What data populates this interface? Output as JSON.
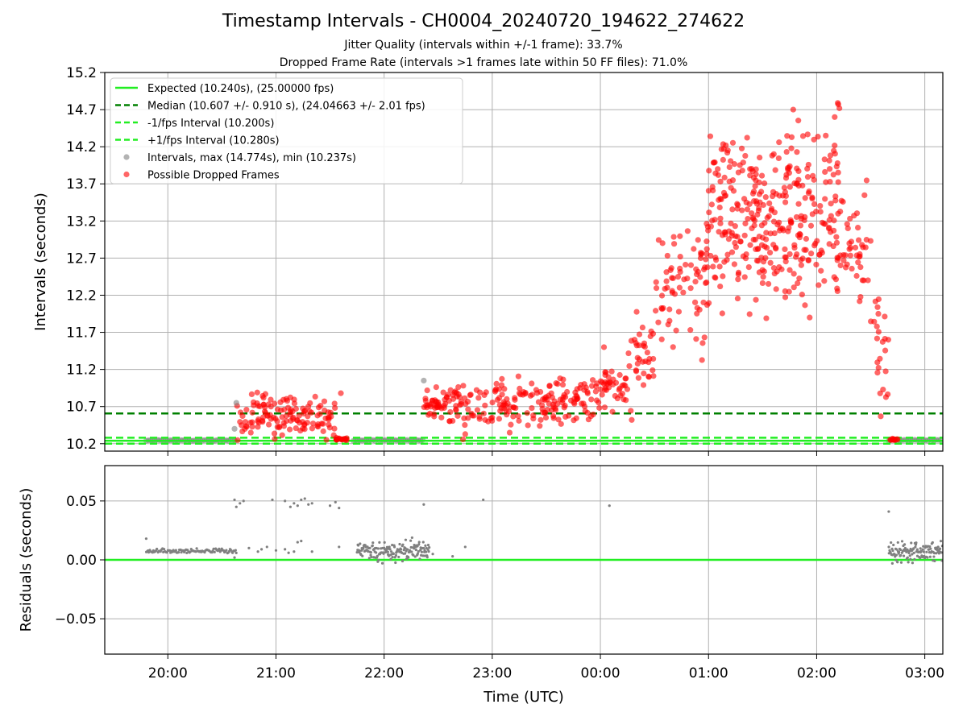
{
  "figure": {
    "title": "Timestamp Intervals - CH0004_20240720_194622_274622",
    "subtitle_1": "Jitter Quality (intervals within +/-1 frame): 33.7%",
    "subtitle_2": "Dropped Frame Rate (intervals >1 frames late within 50 FF files): 71.0%"
  },
  "chart_data": [
    {
      "type": "scatter",
      "panel": "intervals",
      "ylabel": "Intervals (seconds)",
      "ylim": [
        10.1,
        15.2
      ],
      "yticks": [
        "10.2",
        "10.7",
        "11.2",
        "11.7",
        "12.2",
        "12.7",
        "13.2",
        "13.7",
        "14.2",
        "14.7",
        "15.2"
      ],
      "xlim": [
        "19:25",
        "03:10"
      ],
      "grid": true,
      "legend_position": "top-left",
      "colors": {
        "expected": "#22ee22",
        "median": "#008000",
        "normal": "#808080",
        "dropped": "#ff0000"
      },
      "lines": [
        {
          "key": "expected",
          "label": "Expected (10.240s), (25.00000 fps)",
          "y": 10.24,
          "style": "solid",
          "color": "#22ee22"
        },
        {
          "key": "median",
          "label": "Median (10.607 +/- 0.910 s), (24.04663 +/- 2.01 fps)",
          "y": 10.607,
          "style": "dashed",
          "color": "#008000"
        },
        {
          "key": "minus_fps",
          "label": "-1/fps Interval (10.200s)",
          "y": 10.2,
          "style": "dashed",
          "color": "#22ee22"
        },
        {
          "key": "plus_fps",
          "label": "+1/fps Interval (10.280s)",
          "y": 10.28,
          "style": "dashed",
          "color": "#22ee22"
        }
      ],
      "scatter_legend": [
        {
          "label": "Intervals, max (14.774s), min (10.237s)",
          "color": "#808080"
        },
        {
          "label": "Possible Dropped Frames",
          "color": "#ff0000"
        }
      ],
      "normal_segments": [
        {
          "from": "19:48",
          "to": "20:38",
          "y": 10.245
        },
        {
          "from": "21:43",
          "to": "22:22",
          "y": 10.247
        },
        {
          "from": "02:40",
          "to": "03:10",
          "y": 10.248
        }
      ],
      "dropped_bands": [
        {
          "from": "20:38",
          "to": "21:33",
          "median": 10.57,
          "spread": 0.15
        },
        {
          "from": "21:33",
          "to": "21:40",
          "median": 10.26,
          "spread": 0.01
        },
        {
          "from": "22:22",
          "to": "23:00",
          "median": 10.7,
          "spread": 0.14
        },
        {
          "from": "23:00",
          "to": "23:55",
          "median": 10.78,
          "spread": 0.15
        },
        {
          "from": "23:55",
          "to": "00:15",
          "median": 10.95,
          "spread": 0.15
        },
        {
          "from": "00:15",
          "to": "00:30",
          "median": 11.3,
          "spread": 0.3
        },
        {
          "from": "00:30",
          "to": "00:40",
          "median": 12.2,
          "spread": 0.35
        },
        {
          "from": "00:40",
          "to": "00:58",
          "median": 12.4,
          "spread": 0.45
        },
        {
          "from": "00:58",
          "to": "02:15",
          "median": 12.8,
          "spread": 0.35
        },
        {
          "from": "01:00",
          "to": "02:15",
          "median": 13.7,
          "spread": 0.4
        },
        {
          "from": "02:15",
          "to": "02:30",
          "median": 12.9,
          "spread": 0.35
        },
        {
          "from": "02:30",
          "to": "02:40",
          "median": 11.5,
          "spread": 0.45
        },
        {
          "from": "02:40",
          "to": "02:45",
          "median": 10.25,
          "spread": 0.01
        }
      ],
      "dropped_points": [
        {
          "x": "00:02",
          "y": 11.5
        },
        {
          "x": "01:47",
          "y": 14.7
        },
        {
          "x": "02:10",
          "y": 14.6
        },
        {
          "x": "02:12",
          "y": 14.77
        },
        {
          "x": "21:36",
          "y": 10.88
        }
      ],
      "outlier_points": [
        {
          "x": "22:22",
          "y": 11.05
        },
        {
          "x": "20:37",
          "y": 10.4
        },
        {
          "x": "20:38",
          "y": 10.75
        }
      ]
    },
    {
      "type": "scatter",
      "panel": "residuals",
      "xlabel": "Time (UTC)",
      "ylabel": "Residuals (seconds)",
      "ylim": [
        -0.08,
        0.08
      ],
      "yticks": [
        "−0.05",
        "0.00",
        "0.05"
      ],
      "ytick_values": [
        -0.05,
        0.0,
        0.05
      ],
      "xticks": [
        "20:00",
        "21:00",
        "22:00",
        "23:00",
        "00:00",
        "01:00",
        "02:00",
        "03:00"
      ],
      "grid": true,
      "zero_line_color": "#22ee22",
      "residual_segments": [
        {
          "from": "19:48",
          "to": "20:38",
          "median": 0.0075,
          "spread": 0.001
        },
        {
          "from": "21:45",
          "to": "22:25",
          "median": 0.008,
          "spread": 0.004
        },
        {
          "from": "02:40",
          "to": "03:10",
          "median": 0.008,
          "spread": 0.004
        }
      ],
      "residual_points": [
        {
          "x": "19:48",
          "y": 0.018
        },
        {
          "x": "20:37",
          "y": 0.051
        },
        {
          "x": "20:38",
          "y": 0.045
        },
        {
          "x": "20:40",
          "y": 0.048
        },
        {
          "x": "20:42",
          "y": 0.05
        },
        {
          "x": "20:58",
          "y": 0.051
        },
        {
          "x": "21:05",
          "y": 0.05
        },
        {
          "x": "21:08",
          "y": 0.045
        },
        {
          "x": "21:10",
          "y": 0.048
        },
        {
          "x": "21:12",
          "y": 0.046
        },
        {
          "x": "21:14",
          "y": 0.051
        },
        {
          "x": "21:16",
          "y": 0.052
        },
        {
          "x": "21:18",
          "y": 0.047
        },
        {
          "x": "21:20",
          "y": 0.048
        },
        {
          "x": "21:30",
          "y": 0.046
        },
        {
          "x": "21:33",
          "y": 0.049
        },
        {
          "x": "21:35",
          "y": 0.044
        },
        {
          "x": "22:22",
          "y": 0.047
        },
        {
          "x": "22:55",
          "y": 0.051
        },
        {
          "x": "00:05",
          "y": 0.046
        },
        {
          "x": "02:40",
          "y": 0.041
        },
        {
          "x": "20:37",
          "y": 0.002
        },
        {
          "x": "20:45",
          "y": 0.01
        },
        {
          "x": "20:50",
          "y": 0.007
        },
        {
          "x": "20:52",
          "y": 0.009
        },
        {
          "x": "20:55",
          "y": 0.011
        },
        {
          "x": "21:00",
          "y": 0.008
        },
        {
          "x": "21:05",
          "y": 0.009
        },
        {
          "x": "21:07",
          "y": 0.006
        },
        {
          "x": "21:10",
          "y": 0.007
        },
        {
          "x": "21:12",
          "y": 0.015
        },
        {
          "x": "21:14",
          "y": 0.016
        },
        {
          "x": "21:20",
          "y": 0.007
        },
        {
          "x": "21:35",
          "y": 0.011
        },
        {
          "x": "22:27",
          "y": 0.005
        },
        {
          "x": "22:38",
          "y": 0.003
        },
        {
          "x": "22:45",
          "y": 0.011
        },
        {
          "x": "02:42",
          "y": -0.003
        }
      ]
    }
  ]
}
